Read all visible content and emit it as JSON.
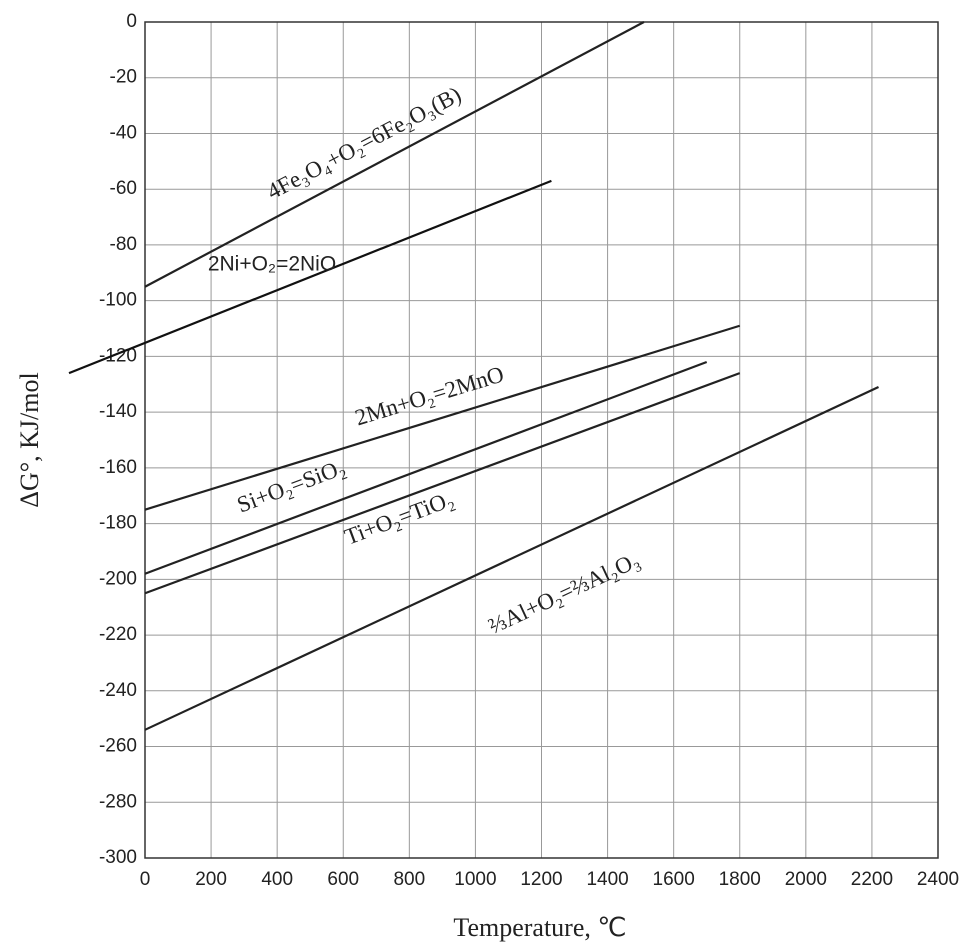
{
  "chart_data": {
    "type": "line",
    "xlabel": "Temperature, ℃",
    "ylabel": "ΔG°, KJ/mol",
    "xlim": [
      0,
      2400
    ],
    "xticks": [
      0,
      200,
      400,
      600,
      800,
      1000,
      1200,
      1400,
      1600,
      1800,
      2000,
      2200,
      2400
    ],
    "ylim": [
      -300,
      0
    ],
    "yticks": [
      0,
      -20,
      -40,
      -60,
      -80,
      -100,
      -120,
      -140,
      -160,
      -180,
      -200,
      -220,
      -240,
      -260,
      -280,
      -300
    ],
    "grid": true,
    "series": [
      {
        "name": "4Fe₃O₄+O₂=6Fe₂O₃(B)",
        "color": "#222222",
        "x": [
          0,
          1510
        ],
        "values": [
          -95,
          0
        ]
      },
      {
        "name": "2Ni+O₂=2NiO",
        "color": "#111111",
        "x": [
          -230,
          1230
        ],
        "values": [
          -126,
          -57
        ]
      },
      {
        "name": "2Mn+O₂=2MnO",
        "color": "#222222",
        "x": [
          0,
          1800
        ],
        "values": [
          -175,
          -109
        ]
      },
      {
        "name": "Si+O₂=SiO₂",
        "color": "#222222",
        "x": [
          0,
          1700
        ],
        "values": [
          -198,
          -122
        ]
      },
      {
        "name": "Ti+O₂=TiO₂",
        "color": "#222222",
        "x": [
          0,
          1800
        ],
        "values": [
          -205,
          -126
        ]
      },
      {
        "name": "⅔Al+O₂=⅔Al₂O₃",
        "color": "#222222",
        "x": [
          0,
          2220
        ],
        "values": [
          -254,
          -131
        ]
      }
    ]
  }
}
